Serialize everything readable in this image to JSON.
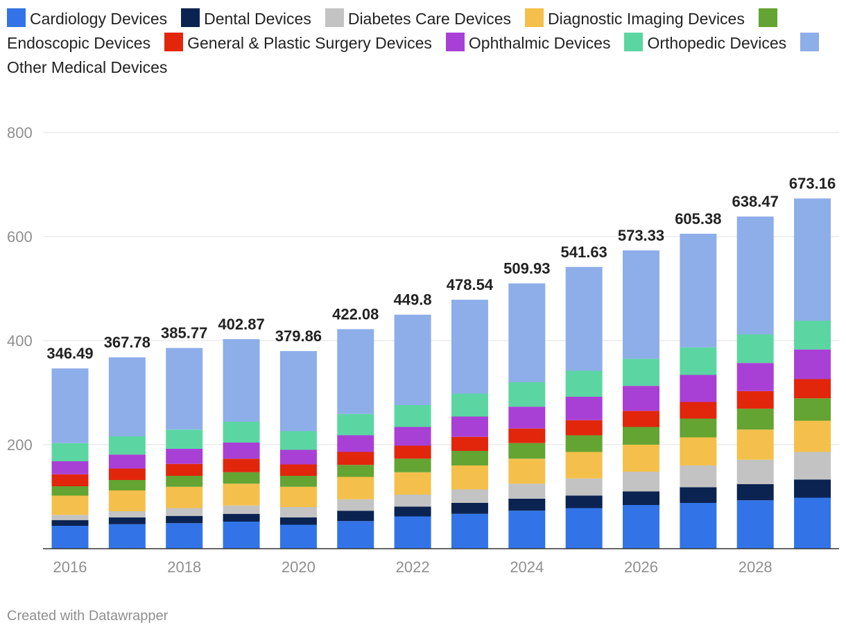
{
  "chart_data": {
    "type": "bar",
    "stacked": true,
    "categories": [
      "2016",
      "2017",
      "2018",
      "2019",
      "2020",
      "2021",
      "2022",
      "2023",
      "2024",
      "2025",
      "2026",
      "2027",
      "2028",
      "2029"
    ],
    "x_tick_labels": [
      "2016",
      "2018",
      "2020",
      "2022",
      "2024",
      "2026",
      "2028"
    ],
    "y_ticks": [
      200,
      400,
      600,
      800
    ],
    "ylim": [
      0,
      800
    ],
    "grid": true,
    "legend_position": "top",
    "totals": [
      "346.49",
      "367.78",
      "385.77",
      "402.87",
      "379.86",
      "422.08",
      "449.8",
      "478.54",
      "509.93",
      "541.63",
      "573.33",
      "605.38",
      "638.47",
      "673.16"
    ],
    "series": [
      {
        "name": "Cardiology Devices",
        "color": "#3274e8",
        "values": [
          44,
          47,
          49,
          52,
          46,
          53,
          62,
          67,
          73,
          78,
          84,
          88,
          93,
          98
        ]
      },
      {
        "name": "Dental Devices",
        "color": "#0b2350",
        "values": [
          11,
          13,
          14,
          15,
          14,
          20,
          19,
          21,
          23,
          24,
          26,
          30,
          31,
          35
        ]
      },
      {
        "name": "Diabetes Care Devices",
        "color": "#c3c3c3",
        "values": [
          10,
          12,
          15,
          16,
          20,
          22,
          23,
          26,
          29,
          33,
          38,
          42,
          47,
          53
        ]
      },
      {
        "name": "Diagnostic Imaging Devices",
        "color": "#f4c04b",
        "values": [
          37,
          40,
          41,
          42,
          39,
          43,
          43,
          46,
          48,
          51,
          52,
          54,
          58,
          60
        ]
      },
      {
        "name": "Endoscopic Devices",
        "color": "#63a432",
        "values": [
          18,
          20,
          21,
          22,
          21,
          23,
          26,
          28,
          30,
          32,
          34,
          36,
          40,
          43
        ]
      },
      {
        "name": "General & Plastic Surgery Devices",
        "color": "#e1260c",
        "values": [
          23,
          22,
          23,
          26,
          22,
          25,
          25,
          27,
          28,
          29,
          31,
          32,
          34,
          37
        ]
      },
      {
        "name": "Ophthalmic Devices",
        "color": "#a940d6",
        "values": [
          25,
          27,
          29,
          31,
          28,
          32,
          36,
          39,
          42,
          45,
          48,
          52,
          54,
          57
        ]
      },
      {
        "name": "Orthopedic Devices",
        "color": "#5bd6a2",
        "values": [
          35,
          35,
          37,
          40,
          36,
          41,
          42,
          44,
          47,
          50,
          52,
          53,
          55,
          55
        ]
      },
      {
        "name": "Other Medical Devices",
        "color": "#8eaee9",
        "values": [
          143.49,
          151.78,
          156.77,
          158.87,
          153.86,
          163.08,
          173.8,
          180.54,
          189.93,
          199.63,
          208.33,
          218.38,
          226.47,
          235.16
        ]
      }
    ]
  },
  "credit": "Created with Datawrapper"
}
